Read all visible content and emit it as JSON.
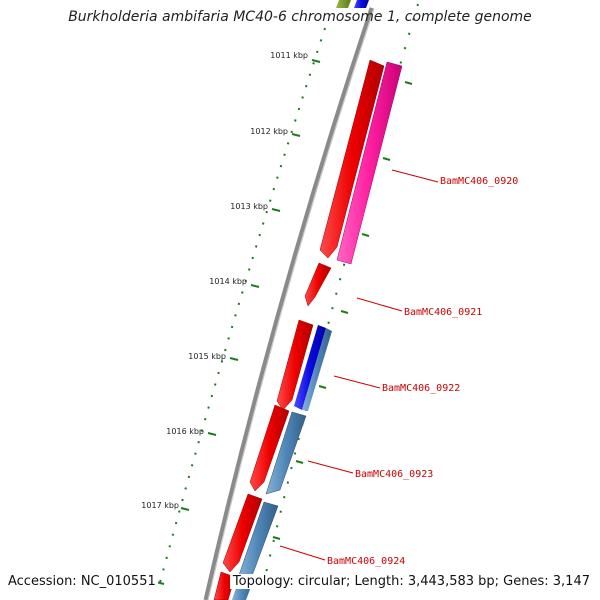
{
  "title": "Burkholderia ambifaria MC40-6 chromosome 1, complete genome",
  "footer": {
    "accession": "Accession: NC_010551",
    "summary": "Topology: circular; Length: 3,443,583 bp; Genes: 3,147"
  },
  "colors": {
    "backbone": "#8a8a8a",
    "tick": "#1e7a1e",
    "label_red": "#cc0000",
    "cds_red": "#ee0000",
    "cds_magenta": "#ff1fa0",
    "cds_blue": "#0a0ae0",
    "cds_steelblue": "#4f86b8",
    "cds_olive": "#6b8e23"
  },
  "ticks": [
    {
      "label": "1011 kbp"
    },
    {
      "label": "1012 kbp"
    },
    {
      "label": "1013 kbp"
    },
    {
      "label": "1014 kbp"
    },
    {
      "label": "1015 kbp"
    },
    {
      "label": "1016 kbp"
    },
    {
      "label": "1017 kbp"
    }
  ],
  "features": [
    {
      "label": "BamMC406_0920"
    },
    {
      "label": "BamMC406_0921"
    },
    {
      "label": "BamMC406_0922"
    },
    {
      "label": "BamMC406_0923"
    },
    {
      "label": "BamMC406_0924"
    }
  ]
}
